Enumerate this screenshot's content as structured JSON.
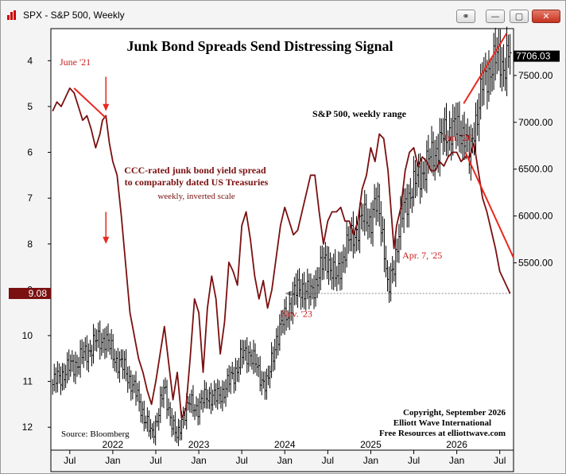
{
  "window": {
    "title": "SPX - S&P 500, Weekly",
    "buttons": {
      "link": "⚭",
      "minimize": "—",
      "maximize": "▢",
      "close": "✕"
    }
  },
  "chart_data": {
    "type": "line",
    "title": "Junk Bond Spreads Send Distressing Signal",
    "series": [
      {
        "name": "S&P 500, weekly range",
        "style": "ohlc-bars",
        "color": "#000000",
        "axis": "right",
        "x": [
          2021.3,
          2021.4,
          2021.5,
          2021.6,
          2021.7,
          2021.8,
          2021.9,
          2021.96,
          2022.05,
          2022.15,
          2022.25,
          2022.35,
          2022.45,
          2022.5,
          2022.6,
          2022.7,
          2022.75,
          2022.8,
          2022.9,
          2023.0,
          2023.1,
          2023.2,
          2023.3,
          2023.4,
          2023.5,
          2023.6,
          2023.7,
          2023.8,
          2023.85,
          2023.9,
          2024.0,
          2024.1,
          2024.2,
          2024.3,
          2024.4,
          2024.5,
          2024.6,
          2024.7,
          2024.8,
          2024.9,
          2024.95,
          2025.0,
          2025.05,
          2025.1,
          2025.15,
          2025.2,
          2025.27,
          2025.35,
          2025.45,
          2025.55,
          2025.65,
          2025.75,
          2025.85,
          2025.95,
          2026.0,
          2026.1,
          2026.15,
          2026.2,
          2026.25,
          2026.3,
          2026.4,
          2026.5,
          2026.55,
          2026.62
        ],
        "close": [
          4200,
          4300,
          4380,
          4450,
          4550,
          4650,
          4700,
          4600,
          4450,
          4350,
          4150,
          3900,
          3650,
          3800,
          4150,
          3750,
          3600,
          3850,
          4000,
          3950,
          4100,
          4050,
          4150,
          4300,
          4500,
          4550,
          4300,
          4200,
          4450,
          4700,
          4900,
          5150,
          5250,
          5150,
          5400,
          5550,
          5300,
          5650,
          5800,
          5950,
          6000,
          5950,
          6100,
          6050,
          5750,
          5150,
          5500,
          5950,
          6250,
          6400,
          6550,
          6700,
          6850,
          6950,
          6900,
          6900,
          6550,
          6950,
          7150,
          7400,
          7600,
          7700,
          7600,
          7706.03
        ],
        "ylim": [
          3500,
          8000
        ],
        "ticks": [
          5500,
          6000,
          6500,
          7000,
          7500
        ],
        "last_label": "7706.03"
      },
      {
        "name": "CCC-rated junk bond yield spread to comparably dated US Treasuries",
        "style": "line",
        "color": "#7a1010",
        "axis": "left",
        "inverted": true,
        "x": [
          2021.3,
          2021.35,
          2021.4,
          2021.45,
          2021.5,
          2021.55,
          2021.6,
          2021.65,
          2021.7,
          2021.75,
          2021.8,
          2021.85,
          2021.88,
          2021.92,
          2021.96,
          2022.0,
          2022.05,
          2022.1,
          2022.2,
          2022.3,
          2022.35,
          2022.4,
          2022.45,
          2022.5,
          2022.55,
          2022.6,
          2022.65,
          2022.7,
          2022.75,
          2022.8,
          2022.85,
          2022.9,
          2022.95,
          2023.0,
          2023.05,
          2023.1,
          2023.15,
          2023.2,
          2023.25,
          2023.3,
          2023.35,
          2023.4,
          2023.45,
          2023.5,
          2023.55,
          2023.6,
          2023.65,
          2023.7,
          2023.75,
          2023.8,
          2023.85,
          2023.9,
          2023.95,
          2024.0,
          2024.05,
          2024.1,
          2024.15,
          2024.2,
          2024.25,
          2024.3,
          2024.35,
          2024.4,
          2024.45,
          2024.5,
          2024.55,
          2024.6,
          2024.65,
          2024.7,
          2024.75,
          2024.8,
          2024.85,
          2024.9,
          2024.95,
          2025.0,
          2025.05,
          2025.1,
          2025.15,
          2025.2,
          2025.27,
          2025.3,
          2025.35,
          2025.4,
          2025.45,
          2025.5,
          2025.55,
          2025.6,
          2025.65,
          2025.7,
          2025.75,
          2025.8,
          2025.85,
          2025.9,
          2025.95,
          2026.0,
          2026.05,
          2026.1,
          2026.15,
          2026.2,
          2026.25,
          2026.3,
          2026.35,
          2026.4,
          2026.45,
          2026.5,
          2026.55,
          2026.62
        ],
        "values": [
          5.1,
          4.9,
          5.0,
          4.8,
          4.6,
          4.7,
          5.0,
          5.3,
          5.2,
          5.5,
          5.9,
          5.6,
          5.3,
          5.2,
          5.8,
          6.2,
          6.5,
          7.4,
          9.5,
          10.5,
          10.8,
          11.2,
          11.5,
          11.0,
          10.4,
          9.8,
          10.6,
          11.4,
          10.8,
          11.8,
          11.6,
          10.5,
          9.2,
          9.5,
          10.8,
          9.4,
          8.7,
          9.2,
          10.4,
          9.7,
          8.4,
          8.6,
          8.9,
          7.6,
          7.3,
          7.9,
          8.7,
          9.2,
          8.8,
          9.4,
          9.0,
          8.3,
          7.6,
          7.2,
          7.5,
          7.8,
          7.7,
          7.3,
          6.9,
          6.5,
          6.5,
          7.3,
          8.0,
          7.5,
          7.3,
          7.3,
          7.2,
          7.5,
          7.5,
          7.8,
          7.5,
          6.8,
          6.5,
          5.9,
          6.2,
          5.6,
          5.7,
          6.4,
          8.1,
          7.6,
          7.2,
          6.4,
          6.0,
          5.9,
          6.3,
          6.1,
          6.2,
          6.4,
          6.4,
          6.2,
          6.3,
          6.1,
          6.0,
          6.0,
          6.2,
          6.1,
          6.1,
          5.8,
          6.4,
          7.0,
          7.3,
          7.7,
          8.1,
          8.6,
          8.8,
          9.08
        ],
        "ylim": [
          12.5,
          3.3
        ],
        "ticks": [
          4,
          5,
          6,
          7,
          8,
          9,
          10,
          11,
          12
        ],
        "last_label": "9.08",
        "subtitle": "weekly, inverted scale"
      }
    ],
    "xlim": [
      2021.28,
      2026.66
    ],
    "x_ticks": [
      {
        "value": 2021.5,
        "label": "Jul"
      },
      {
        "value": 2022.0,
        "label": "Jan"
      },
      {
        "value": 2022.5,
        "label": "Jul"
      },
      {
        "value": 2023.0,
        "label": "Jan"
      },
      {
        "value": 2023.5,
        "label": "Jul"
      },
      {
        "value": 2024.0,
        "label": "Jan"
      },
      {
        "value": 2024.5,
        "label": "Jul"
      },
      {
        "value": 2025.0,
        "label": "Jan"
      },
      {
        "value": 2025.5,
        "label": "Jul"
      },
      {
        "value": 2026.0,
        "label": "Jan"
      },
      {
        "value": 2026.5,
        "label": "Jul"
      }
    ],
    "year_labels": [
      {
        "value": 2022.0,
        "label": "2022"
      },
      {
        "value": 2023.0,
        "label": "2023"
      },
      {
        "value": 2024.0,
        "label": "2024"
      },
      {
        "value": 2025.0,
        "label": "2025"
      },
      {
        "value": 2026.0,
        "label": "2026"
      }
    ],
    "annotations": [
      {
        "id": "june21",
        "text": "June '21",
        "x": 2021.6,
        "yL": 4.2
      },
      {
        "id": "apr25",
        "text": "Apr. 7, '25",
        "x": 2025.33,
        "yL": 8.25
      },
      {
        "id": "jan26",
        "text": "Jan. '26",
        "x": 2026.05,
        "yL": 5.85
      },
      {
        "id": "nov23",
        "text": "Nov. '23",
        "x": 2023.95,
        "yL": 9.35
      }
    ],
    "trendlines": [
      {
        "axis": "left",
        "x1": 2021.55,
        "y1": 4.6,
        "x2": 2021.92,
        "y2": 5.25
      },
      {
        "axis": "left",
        "x1": 2026.1,
        "y1": 6.0,
        "x2": 2026.66,
        "y2": 8.3
      },
      {
        "axis": "right",
        "x1": 2026.08,
        "y1": 7200,
        "x2": 2026.58,
        "y2": 7950
      }
    ],
    "arrows": [
      {
        "x": 2021.92,
        "yL_from": 4.35,
        "yL_to": 5.1
      },
      {
        "x": 2021.92,
        "yL_from": 7.3,
        "yL_to": 8.0
      }
    ],
    "reference_arrow": {
      "x_from": 2026.62,
      "x_to": 2024.0,
      "yL": 9.08
    },
    "source": "Source: Bloomberg",
    "credits": [
      "Copyright, September 2026",
      "Elliott Wave International",
      "Free Resources at elliottwave.com"
    ]
  }
}
